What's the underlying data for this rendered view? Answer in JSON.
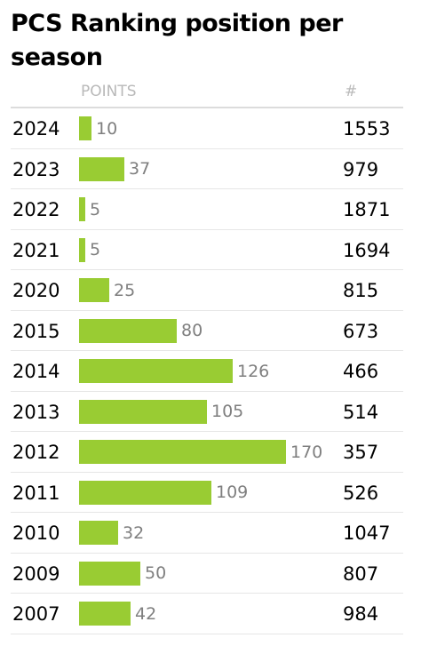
{
  "title": "PCS Ranking position per season",
  "columns": {
    "points": "POINTS",
    "rank": "#"
  },
  "colors": {
    "bar": "#99cc33",
    "points_text": "#7f7f7f",
    "header_text": "#b9b9b9"
  },
  "bar_scale_max_points": 170,
  "rows": [
    {
      "year": "2024",
      "points": 10,
      "rank": "1553"
    },
    {
      "year": "2023",
      "points": 37,
      "rank": "979"
    },
    {
      "year": "2022",
      "points": 5,
      "rank": "1871"
    },
    {
      "year": "2021",
      "points": 5,
      "rank": "1694"
    },
    {
      "year": "2020",
      "points": 25,
      "rank": "815"
    },
    {
      "year": "2015",
      "points": 80,
      "rank": "673"
    },
    {
      "year": "2014",
      "points": 126,
      "rank": "466"
    },
    {
      "year": "2013",
      "points": 105,
      "rank": "514"
    },
    {
      "year": "2012",
      "points": 170,
      "rank": "357"
    },
    {
      "year": "2011",
      "points": 109,
      "rank": "526"
    },
    {
      "year": "2010",
      "points": 32,
      "rank": "1047"
    },
    {
      "year": "2009",
      "points": 50,
      "rank": "807"
    },
    {
      "year": "2007",
      "points": 42,
      "rank": "984"
    }
  ]
}
